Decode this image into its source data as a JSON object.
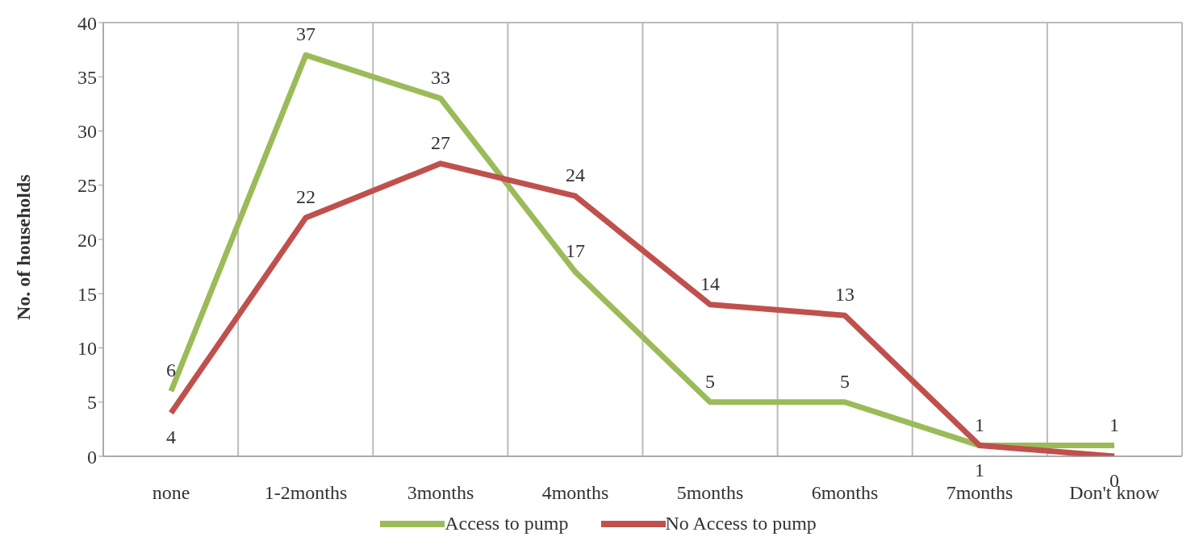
{
  "chart_data": {
    "type": "line",
    "ylabel": "No. of households",
    "categories": [
      "none",
      "1-2months",
      "3months",
      "4months",
      "5months",
      "6months",
      "7months",
      "Don't know"
    ],
    "series": [
      {
        "name": "Access to pump",
        "color": "#9bbb59",
        "values": [
          6,
          37,
          33,
          17,
          5,
          5,
          1,
          1
        ]
      },
      {
        "name": "No Access to pump",
        "color": "#c0504d",
        "values": [
          4,
          22,
          27,
          24,
          14,
          13,
          1,
          0
        ]
      }
    ],
    "ylim": [
      0,
      40
    ],
    "yticks": [
      0,
      5,
      10,
      15,
      20,
      25,
      30,
      35,
      40
    ],
    "grid": true,
    "legend": "bottom",
    "data_labels": true,
    "marker": "none",
    "line_style": "solid"
  }
}
